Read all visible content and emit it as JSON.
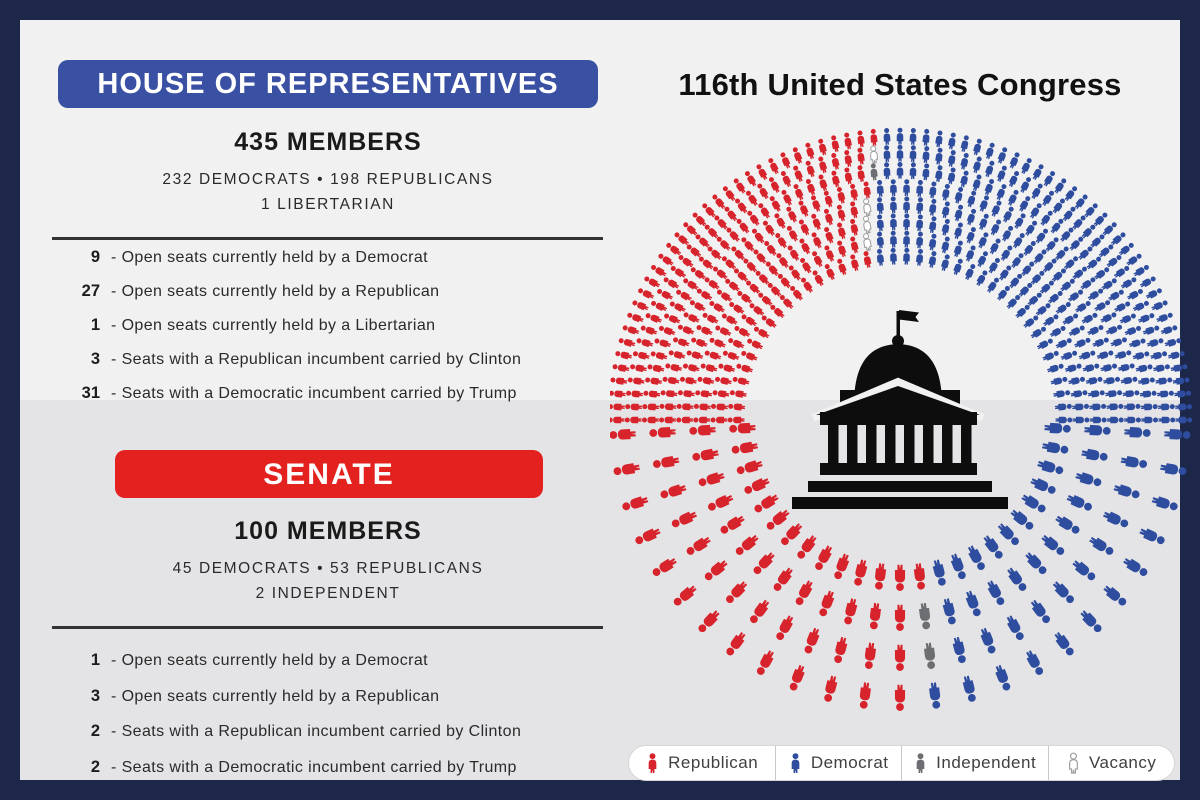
{
  "title": "116th United States Congress",
  "colors": {
    "republican": "#D7232B",
    "democrat": "#2F4D9E",
    "independent": "#6D6E71",
    "vacancy_fill": "#FFFFFF",
    "vacancy_stroke": "#9C9EA0",
    "house_banner": "#3A50A3",
    "senate_banner": "#E3211F",
    "frame": "#1C2749",
    "bg_top": "#F1F1F2",
    "bg_bottom": "#E4E4E6",
    "capitol": "#0D0D0D"
  },
  "house": {
    "banner_label": "HOUSE OF REPRESENTATIVES",
    "members": "435 MEMBERS",
    "composition_line1": "232 DEMOCRATS • 198 REPUBLICANS",
    "composition_line2": "1 LIBERTARIAN",
    "stats": [
      {
        "value": "9",
        "label": "- Open seats currently held by a Democrat"
      },
      {
        "value": "27",
        "label": "- Open seats currently held by a Republican"
      },
      {
        "value": "1",
        "label": "- Open seats currently held by a Libertarian"
      },
      {
        "value": "3",
        "label": "- Seats with a Republican incumbent carried by Clinton"
      },
      {
        "value": "31",
        "label": "- Seats with a Democratic incumbent carried by Trump"
      }
    ]
  },
  "senate": {
    "banner_label": "SENATE",
    "members": "100 MEMBERS",
    "composition_line1": "45 DEMOCRATS • 53 REPUBLICANS",
    "composition_line2": "2 INDEPENDENT",
    "stats": [
      {
        "value": "1",
        "label": "- Open seats currently held by a Democrat"
      },
      {
        "value": "3",
        "label": "- Open seats currently held by a Republican"
      },
      {
        "value": "2",
        "label": "- Seats with a Republican incumbent carried by Clinton"
      },
      {
        "value": "2",
        "label": "- Seats with a Democratic incumbent carried by Trump"
      }
    ]
  },
  "legend": {
    "items": [
      {
        "label": "Republican",
        "color_key": "republican"
      },
      {
        "label": "Democrat",
        "color_key": "democrat"
      },
      {
        "label": "Independent",
        "color_key": "independent"
      },
      {
        "label": "Vacancy",
        "color_key": "vacancy"
      }
    ]
  },
  "chart_data": {
    "type": "parliament",
    "title": "116th United States Congress",
    "icon": "person",
    "chambers": {
      "house": {
        "layout": "semicircle-top",
        "total": 435,
        "rows": 8,
        "seat_order_left_to_right": [
          {
            "party": "Republican",
            "count": 198,
            "color_key": "republican"
          },
          {
            "party": "Vacancy",
            "count": 4,
            "color_key": "vacancy"
          },
          {
            "party": "Libertarian",
            "count": 1,
            "color_key": "independent"
          },
          {
            "party": "Democrat",
            "count": 232,
            "color_key": "democrat"
          }
        ]
      },
      "senate": {
        "layout": "semicircle-bottom",
        "total": 100,
        "spokes": 25,
        "seats_per_spoke": 4,
        "seat_order_left_to_right": [
          {
            "party": "Republican",
            "count": 53,
            "color_key": "republican"
          },
          {
            "party": "Independent",
            "count": 2,
            "color_key": "independent"
          },
          {
            "party": "Democrat",
            "count": 45,
            "color_key": "democrat"
          }
        ]
      }
    }
  }
}
